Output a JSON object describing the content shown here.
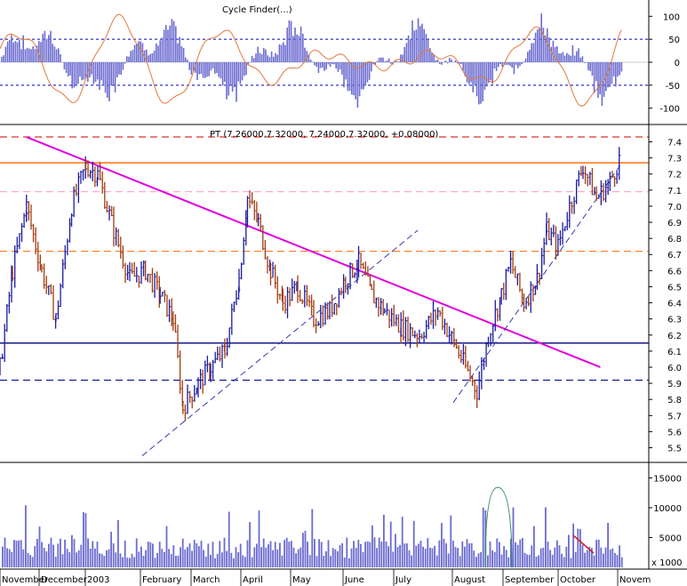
{
  "chart_data": [
    {
      "type": "bar",
      "panel": "cycle-oscillator",
      "title": "Cycle Finder(...)",
      "yticks": [
        100,
        50,
        0,
        -50,
        -100
      ],
      "ylim": [
        -120,
        120
      ],
      "guide_levels": [
        50,
        -50
      ],
      "colors": {
        "bars": "#6b6bd0",
        "line": "#e07a40",
        "guides": "#0000cc"
      },
      "bars_text": "oscillator histogram (dense)",
      "line_text": "cycle line"
    },
    {
      "type": "line",
      "panel": "price",
      "header": "PT (7.26000,7.32000, 7.24000,7.32000, +0.08000)",
      "yticks": [
        7.4,
        7.3,
        7.2,
        7.1,
        7.0,
        6.9,
        6.8,
        6.7,
        6.6,
        6.5,
        6.4,
        6.3,
        6.2,
        6.1,
        6.0,
        5.9,
        5.8,
        5.7,
        5.6,
        5.5
      ],
      "ylim": [
        5.42,
        7.48
      ],
      "horizontal_levels": [
        {
          "y": 7.27,
          "color": "#ff6600",
          "style": "solid"
        },
        {
          "y": 7.09,
          "color": "#ff99cc",
          "style": "dashed"
        },
        {
          "y": 6.72,
          "color": "#ff6600",
          "style": "dashed"
        },
        {
          "y": 6.15,
          "color": "#000080",
          "style": "solid"
        },
        {
          "y": 5.92,
          "color": "#000080",
          "style": "dashed"
        },
        {
          "y": 7.43,
          "color": "#cc0000",
          "style": "dashed"
        }
      ],
      "trendlines": [
        {
          "from": [
            "Nov-20",
            7.43
          ],
          "to": [
            "Oct-22",
            6.0
          ],
          "color": "#e000e0"
        }
      ],
      "series_points": [
        [
          "Nov-01",
          6.0
        ],
        [
          "Nov-10",
          6.6
        ],
        [
          "Nov-20",
          7.0
        ],
        [
          "Dec-01",
          6.6
        ],
        [
          "Dec-10",
          6.3
        ],
        [
          "Dec-20",
          7.0
        ],
        [
          "Dec-29",
          7.25
        ],
        [
          "Jan-06",
          7.2
        ],
        [
          "Jan-15",
          6.85
        ],
        [
          "Jan-24",
          6.55
        ],
        [
          "Feb-03",
          6.6
        ],
        [
          "Feb-12",
          6.45
        ],
        [
          "Feb-20",
          6.3
        ],
        [
          "Feb-26",
          5.75
        ],
        [
          "Mar-05",
          5.9
        ],
        [
          "Mar-12",
          6.0
        ],
        [
          "Mar-20",
          6.1
        ],
        [
          "Mar-28",
          6.55
        ],
        [
          "Apr-03",
          7.05
        ],
        [
          "Apr-10",
          6.9
        ],
        [
          "Apr-18",
          6.6
        ],
        [
          "Apr-26",
          6.4
        ],
        [
          "May-05",
          6.5
        ],
        [
          "May-14",
          6.3
        ],
        [
          "May-23",
          6.35
        ],
        [
          "Jun-02",
          6.55
        ],
        [
          "Jun-10",
          6.65
        ],
        [
          "Jun-18",
          6.45
        ],
        [
          "Jun-26",
          6.35
        ],
        [
          "Jul-05",
          6.25
        ],
        [
          "Jul-14",
          6.2
        ],
        [
          "Jul-23",
          6.35
        ],
        [
          "Jul-31",
          6.15
        ],
        [
          "Aug-08",
          6.0
        ],
        [
          "Aug-15",
          5.85
        ],
        [
          "Aug-22",
          6.2
        ],
        [
          "Aug-30",
          6.45
        ],
        [
          "Sep-05",
          6.65
        ],
        [
          "Sep-12",
          6.4
        ],
        [
          "Sep-19",
          6.55
        ],
        [
          "Sep-24",
          6.85
        ],
        [
          "Sep-30",
          6.75
        ],
        [
          "Oct-06",
          7.0
        ],
        [
          "Oct-13",
          7.25
        ],
        [
          "Oct-20",
          7.05
        ],
        [
          "Oct-27",
          7.15
        ],
        [
          "Nov-03",
          7.32
        ]
      ],
      "colors": {
        "up": "#1a1aa0",
        "down": "#a03b10"
      }
    },
    {
      "type": "bar",
      "panel": "volume",
      "yticks": [
        15000,
        10000,
        5000
      ],
      "ylim": [
        0,
        17000
      ],
      "unit_label": "x 1000",
      "colors": {
        "bars": "#6b6bd0"
      }
    }
  ],
  "x_axis": {
    "labels": [
      "November",
      "December",
      "2003",
      "February",
      "March",
      "April",
      "May",
      "June",
      "July",
      "August",
      "September",
      "October",
      "Novem"
    ]
  }
}
